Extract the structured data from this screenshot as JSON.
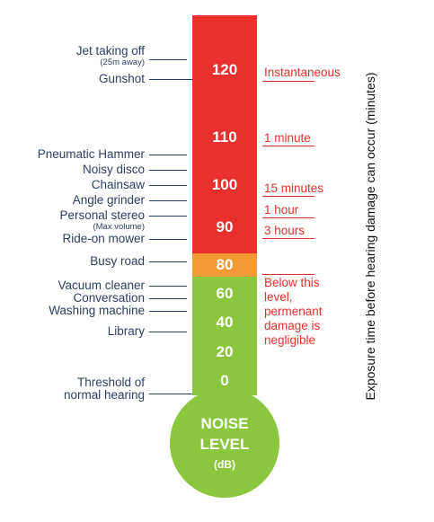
{
  "thermometer": {
    "levels": [
      "120",
      "110",
      "100",
      "90",
      "80",
      "60",
      "40",
      "20",
      "0"
    ],
    "bulb_line1": "NOISE",
    "bulb_line2": "LEVEL",
    "bulb_line3": "(dB)",
    "colors": {
      "danger": "#e8312c",
      "warning": "#f39a37",
      "safe": "#8cc63f"
    }
  },
  "sources": {
    "jet": "Jet taking off",
    "jet_note": "(25m away)",
    "gunshot": "Gunshot",
    "pneumatic": "Pneumatic Hammer",
    "disco": "Noisy disco",
    "chainsaw": "Chainsaw",
    "grinder": "Angle grinder",
    "stereo": "Personal stereo",
    "stereo_note": "(Max volume)",
    "mower": "Ride-on mower",
    "road": "Busy road",
    "vacuum": "Vacuum cleaner",
    "conversation": "Conversation",
    "washing": "Washing machine",
    "library": "Library",
    "threshold_line1": "Threshold of",
    "threshold_line2": "normal hearing"
  },
  "exposure": {
    "instant": "Instantaneous",
    "one_minute": "1 minute",
    "fifteen_minutes": "15 minutes",
    "one_hour": "1 hour",
    "three_hours": "3 hours",
    "note": "Below this level, permenant damage is negligible"
  },
  "axis_title": "Exposure time before hearing damage can occur (minutes)"
}
